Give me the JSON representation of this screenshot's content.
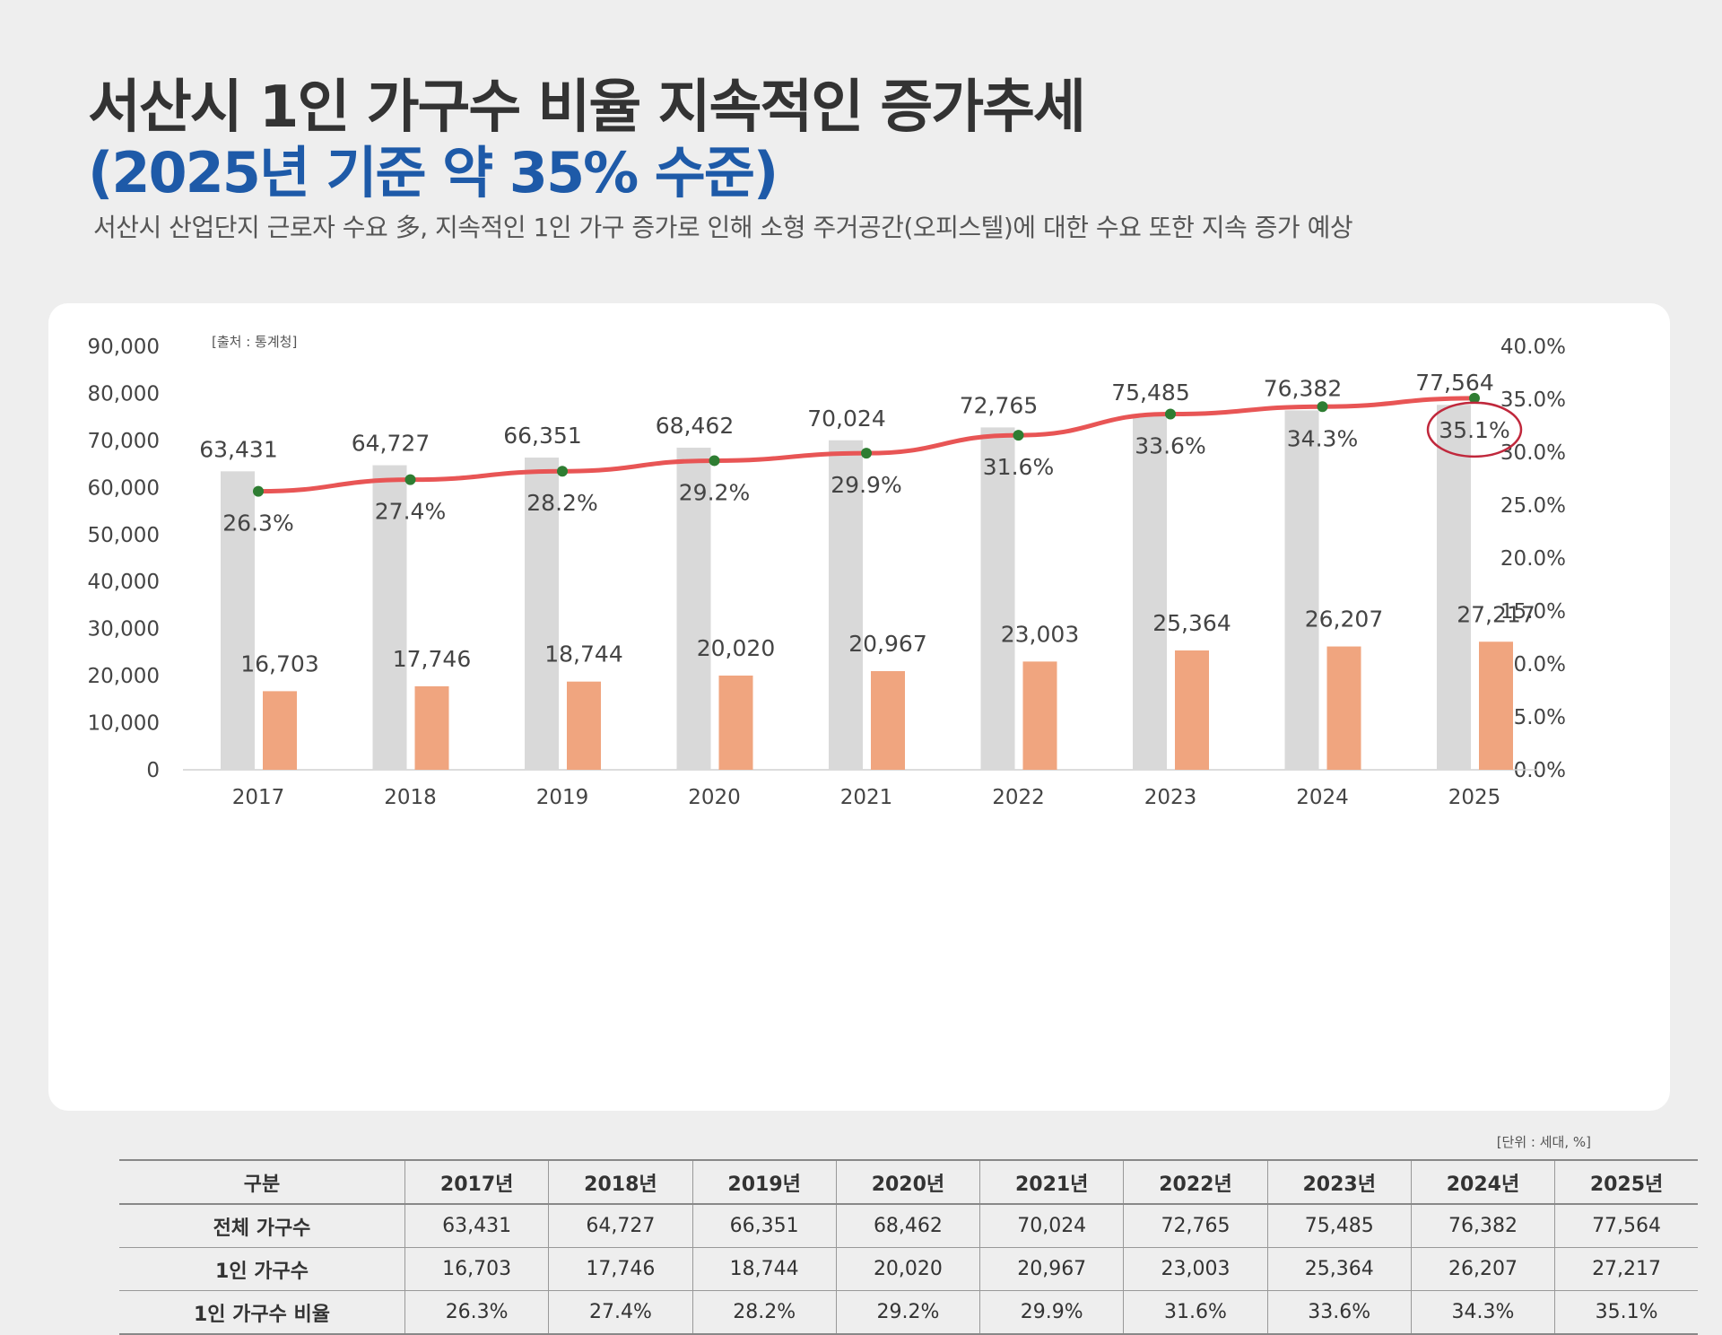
{
  "header": {
    "title_line1": "서산시 1인 가구수 비율 지속적인 증가추세",
    "title_line2": "(2025년 기준 약 35% 수준)",
    "description": "서산시 산업단지 근로자 수요 多, 지속적인 1인 가구 증가로 인해 소형 주거공간(오피스텔)에 대한 수요 또한 지속 증가 예상"
  },
  "chart_data": {
    "type": "bar",
    "source_note": "[출처 : 통계청]",
    "categories": [
      "2017",
      "2018",
      "2019",
      "2020",
      "2021",
      "2022",
      "2023",
      "2024",
      "2025"
    ],
    "series": [
      {
        "values": [
          63431,
          64727,
          66351,
          68462,
          70024,
          72765,
          75485,
          76382,
          77564
        ],
        "color": "#d9d9d9",
        "axis": "left",
        "kind": "bar"
      },
      {
        "values": [
          16703,
          17746,
          18744,
          20020,
          20967,
          23003,
          25364,
          26207,
          27217
        ],
        "color": "#f0a57f",
        "axis": "left",
        "kind": "bar"
      },
      {
        "values": [
          26.3,
          27.4,
          28.2,
          29.2,
          29.9,
          31.6,
          33.6,
          34.3,
          35.1
        ],
        "color": "#e85555",
        "axis": "right",
        "kind": "line",
        "marker_color": "#2e7d32"
      }
    ],
    "y_left": {
      "min": 0,
      "max": 90000,
      "ticks": [
        "0",
        "10,000",
        "20,000",
        "30,000",
        "40,000",
        "50,000",
        "60,000",
        "70,000",
        "80,000",
        "90,000"
      ]
    },
    "y_right": {
      "min": 0,
      "max": 40,
      "ticks": [
        "0.0%",
        "5.0%",
        "10.0%",
        "15.0%",
        "20.0%",
        "25.0%",
        "30.0%",
        "35.0%",
        "40.0%"
      ]
    },
    "total_labels": [
      "63,431",
      "64,727",
      "66,351",
      "68,462",
      "70,024",
      "72,765",
      "75,485",
      "76,382",
      "77,564"
    ],
    "single_labels": [
      "16,703",
      "17,746",
      "18,744",
      "20,020",
      "20,967",
      "23,003",
      "25,364",
      "26,207",
      "27,217"
    ],
    "ratio_labels": [
      "26.3%",
      "27.4%",
      "28.2%",
      "29.2%",
      "29.9%",
      "31.6%",
      "33.6%",
      "34.3%",
      "35.1%"
    ],
    "highlight_index": 8,
    "highlight_color": "#c0283c",
    "grid": false
  },
  "table": {
    "unit_note": "[단위 : 세대, %]",
    "headers": [
      "구분",
      "2017년",
      "2018년",
      "2019년",
      "2020년",
      "2021년",
      "2022년",
      "2023년",
      "2024년",
      "2025년"
    ],
    "rows": [
      {
        "label": "전체 가구수",
        "cells": [
          "63,431",
          "64,727",
          "66,351",
          "68,462",
          "70,024",
          "72,765",
          "75,485",
          "76,382",
          "77,564"
        ]
      },
      {
        "label": "1인 가구수",
        "cells": [
          "16,703",
          "17,746",
          "18,744",
          "20,020",
          "20,967",
          "23,003",
          "25,364",
          "26,207",
          "27,217"
        ]
      },
      {
        "label": "1인 가구수 비율",
        "cells": [
          "26.3%",
          "27.4%",
          "28.2%",
          "29.2%",
          "29.9%",
          "31.6%",
          "33.6%",
          "34.3%",
          "35.1%"
        ]
      }
    ]
  }
}
